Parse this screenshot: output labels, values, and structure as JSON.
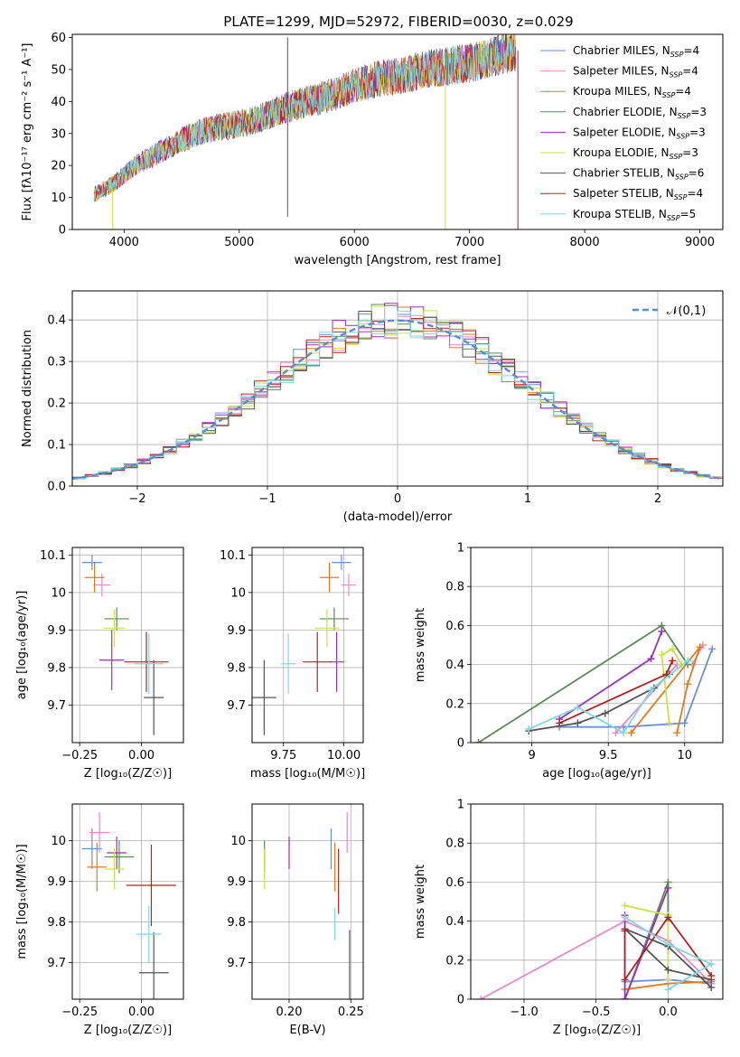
{
  "figure": {
    "title": "PLATE=1299, MJD=52972, FIBERID=0030, z=0.029",
    "series_colors": [
      "#6a8fd8",
      "#e78ac3",
      "#e07b20",
      "#5a8a5a",
      "#9b30b8",
      "#c8e04a",
      "#555555",
      "#b22222",
      "#7fd8dc"
    ]
  },
  "chart_data": [
    {
      "id": "spectrum",
      "type": "line",
      "title": "PLATE=1299, MJD=52972, FIBERID=0030, z=0.029",
      "xlabel": "wavelength [Angstrom, rest frame]",
      "ylabel": "Flux [fλ10⁻¹⁷ erg cm⁻² s⁻¹ A⁻¹]",
      "xlim": [
        3550,
        9200
      ],
      "ylim": [
        0,
        61
      ],
      "xticks": [
        4000,
        5000,
        6000,
        7000,
        8000,
        9000
      ],
      "yticks": [
        0,
        10,
        20,
        30,
        40,
        50,
        60
      ],
      "grid": false,
      "legend_position": "upper right",
      "x_range": [
        3740,
        7400
      ],
      "continuum": [
        [
          3740,
          11
        ],
        [
          3900,
          14
        ],
        [
          4000,
          17
        ],
        [
          4100,
          20
        ],
        [
          4200,
          22
        ],
        [
          4300,
          24
        ],
        [
          4500,
          28
        ],
        [
          4700,
          31
        ],
        [
          5000,
          33
        ],
        [
          5200,
          35
        ],
        [
          5400,
          38
        ],
        [
          5600,
          40
        ],
        [
          5800,
          42
        ],
        [
          6000,
          45
        ],
        [
          6200,
          47
        ],
        [
          6400,
          48
        ],
        [
          6600,
          50
        ],
        [
          6800,
          51
        ],
        [
          7000,
          52
        ],
        [
          7200,
          54
        ],
        [
          7400,
          56
        ]
      ],
      "features": [
        {
          "x": 5420,
          "y_low": 4,
          "y_high": 60,
          "series": 6
        },
        {
          "x": 6790,
          "y_low": 0,
          "y_high": 50,
          "series": 5
        },
        {
          "x": 7420,
          "y_low": 0,
          "y_high": 56,
          "series": 7
        },
        {
          "x": 3900,
          "y_low": 0,
          "y_high": 12,
          "series": 5
        }
      ],
      "series": [
        {
          "name": "Chabrier MILES, N_SSP=4",
          "color": "#6a8fd8"
        },
        {
          "name": "Salpeter MILES, N_SSP=4",
          "color": "#e78ac3"
        },
        {
          "name": "Kroupa MILES, N_SSP=4",
          "color": "#e07b20"
        },
        {
          "name": "Chabrier ELODIE, N_SSP=3",
          "color": "#5a8a5a"
        },
        {
          "name": "Salpeter ELODIE, N_SSP=3",
          "color": "#9b30b8"
        },
        {
          "name": "Kroupa ELODIE, N_SSP=3",
          "color": "#c8e04a"
        },
        {
          "name": "Chabrier STELIB, N_SSP=6",
          "color": "#555555"
        },
        {
          "name": "Salpeter STELIB, N_SSP=4",
          "color": "#b22222"
        },
        {
          "name": "Kroupa STELIB, N_SSP=5",
          "color": "#7fd8dc"
        }
      ]
    },
    {
      "id": "histogram",
      "type": "line",
      "xlabel": "(data-model)/error",
      "ylabel": "Normed distribution",
      "xlim": [
        -2.5,
        2.5
      ],
      "ylim": [
        0,
        0.47
      ],
      "xticks": [
        -2,
        -1,
        0,
        1,
        2
      ],
      "yticks": [
        0.0,
        0.1,
        0.2,
        0.3,
        0.4
      ],
      "grid": true,
      "legend_position": "upper right",
      "normal_label": "𝒩(0,1)",
      "normal_color": "#5b8bd0",
      "bin_width": 0.1,
      "bin_start": -2.5
    },
    {
      "id": "age_vs_Z",
      "type": "scatter",
      "xlabel": "Z [log₁₀(Z/Z☉)]",
      "ylabel": "age  [log₁₀(age/yr)]",
      "xlim": [
        -0.28,
        0.17
      ],
      "ylim": [
        9.6,
        10.12
      ],
      "xticks": [
        -0.25,
        0.0
      ],
      "yticks": [
        9.7,
        9.8,
        9.9,
        10.0,
        10.1
      ],
      "grid": true,
      "points": [
        {
          "x": -0.2,
          "y": 10.08,
          "xerr": 0.04,
          "yerr": 0.02
        },
        {
          "x": -0.16,
          "y": 10.02,
          "xerr": 0.035,
          "yerr": 0.03
        },
        {
          "x": -0.19,
          "y": 10.04,
          "xerr": 0.04,
          "yerr": 0.04
        },
        {
          "x": -0.1,
          "y": 9.93,
          "xerr": 0.05,
          "yerr": 0.03
        },
        {
          "x": -0.12,
          "y": 9.82,
          "xerr": 0.05,
          "yerr": 0.08
        },
        {
          "x": -0.11,
          "y": 9.905,
          "xerr": 0.045,
          "yerr": 0.05
        },
        {
          "x": 0.05,
          "y": 9.72,
          "xerr": 0.04,
          "yerr": 0.1
        },
        {
          "x": 0.02,
          "y": 9.815,
          "xerr": 0.09,
          "yerr": 0.08
        },
        {
          "x": 0.03,
          "y": 9.81,
          "xerr": 0.06,
          "yerr": 0.08
        }
      ]
    },
    {
      "id": "age_vs_mass",
      "type": "scatter",
      "xlabel": "mass [log₁₀(M/M☉)]",
      "ylabel": "",
      "xlim": [
        9.62,
        10.08
      ],
      "ylim": [
        9.6,
        10.12
      ],
      "xticks": [
        9.75,
        10.0
      ],
      "yticks": [
        9.7,
        9.8,
        9.9,
        10.0,
        10.1
      ],
      "grid": true,
      "points": [
        {
          "x": 9.99,
          "y": 10.08,
          "xerr": 0.04,
          "yerr": 0.02
        },
        {
          "x": 10.02,
          "y": 10.02,
          "xerr": 0.03,
          "yerr": 0.03
        },
        {
          "x": 9.94,
          "y": 10.04,
          "xerr": 0.04,
          "yerr": 0.04
        },
        {
          "x": 9.96,
          "y": 9.93,
          "xerr": 0.06,
          "yerr": 0.03
        },
        {
          "x": 9.97,
          "y": 9.815,
          "xerr": 0.03,
          "yerr": 0.08
        },
        {
          "x": 9.93,
          "y": 9.905,
          "xerr": 0.05,
          "yerr": 0.05
        },
        {
          "x": 9.67,
          "y": 9.72,
          "xerr": 0.05,
          "yerr": 0.1
        },
        {
          "x": 9.89,
          "y": 9.815,
          "xerr": 0.06,
          "yerr": 0.08
        },
        {
          "x": 9.77,
          "y": 9.81,
          "xerr": 0.03,
          "yerr": 0.08
        }
      ]
    },
    {
      "id": "weight_vs_age",
      "type": "line",
      "xlabel": "age  [log₁₀(age/yr)]",
      "ylabel": "mass weight",
      "xlim": [
        8.6,
        10.25
      ],
      "ylim": [
        0,
        1.0
      ],
      "xticks": [
        9.0,
        9.5,
        10.0
      ],
      "yticks": [
        0.0,
        0.2,
        0.4,
        0.6,
        0.8,
        1.0
      ],
      "grid": true,
      "series": [
        {
          "points": [
            [
              9.18,
              0.08
            ],
            [
              9.6,
              0.08
            ],
            [
              10.0,
              0.1
            ],
            [
              10.18,
              0.48
            ]
          ]
        },
        {
          "points": [
            [
              9.55,
              0.05
            ],
            [
              9.95,
              0.4
            ],
            [
              10.05,
              0.4
            ],
            [
              10.12,
              0.5
            ]
          ]
        },
        {
          "points": [
            [
              9.95,
              0.05
            ],
            [
              10.02,
              0.3
            ],
            [
              10.1,
              0.49
            ],
            [
              9.65,
              0.05
            ]
          ]
        },
        {
          "points": [
            [
              8.65,
              0.0
            ],
            [
              9.85,
              0.6
            ],
            [
              10.02,
              0.4
            ]
          ]
        },
        {
          "points": [
            [
              9.18,
              0.12
            ],
            [
              9.78,
              0.43
            ],
            [
              9.85,
              0.57
            ]
          ]
        },
        {
          "points": [
            [
              9.9,
              0.1
            ],
            [
              9.85,
              0.45
            ],
            [
              9.92,
              0.48
            ],
            [
              9.98,
              0.4
            ]
          ]
        },
        {
          "points": [
            [
              8.98,
              0.06
            ],
            [
              9.3,
              0.1
            ],
            [
              9.48,
              0.15
            ],
            [
              9.8,
              0.28
            ],
            [
              9.9,
              0.35
            ]
          ]
        },
        {
          "points": [
            [
              9.18,
              0.1
            ],
            [
              9.88,
              0.35
            ],
            [
              9.92,
              0.42
            ]
          ]
        },
        {
          "points": [
            [
              8.98,
              0.07
            ],
            [
              9.3,
              0.18
            ],
            [
              9.6,
              0.05
            ],
            [
              9.78,
              0.27
            ],
            [
              10.02,
              0.42
            ]
          ]
        }
      ]
    },
    {
      "id": "mass_vs_Z",
      "type": "scatter",
      "xlabel": "Z [log₁₀(Z/Z☉)]",
      "ylabel": "mass [log₁₀(M/M☉)]",
      "xlim": [
        -0.28,
        0.17
      ],
      "ylim": [
        9.61,
        10.09
      ],
      "xticks": [
        -0.25,
        0.0
      ],
      "yticks": [
        9.7,
        9.8,
        9.9,
        10.0
      ],
      "grid": true,
      "points": [
        {
          "x": -0.2,
          "y": 9.98,
          "xerr": 0.04,
          "yerr": 0.05
        },
        {
          "x": -0.17,
          "y": 10.02,
          "xerr": 0.04,
          "yerr": 0.05
        },
        {
          "x": -0.18,
          "y": 9.935,
          "xerr": 0.04,
          "yerr": 0.06
        },
        {
          "x": -0.09,
          "y": 9.96,
          "xerr": 0.06,
          "yerr": 0.04
        },
        {
          "x": -0.1,
          "y": 9.97,
          "xerr": 0.04,
          "yerr": 0.04
        },
        {
          "x": -0.11,
          "y": 9.93,
          "xerr": 0.04,
          "yerr": 0.05
        },
        {
          "x": 0.05,
          "y": 9.675,
          "xerr": 0.06,
          "yerr": 0.1
        },
        {
          "x": 0.04,
          "y": 9.89,
          "xerr": 0.1,
          "yerr": 0.1
        },
        {
          "x": 0.03,
          "y": 9.77,
          "xerr": 0.05,
          "yerr": 0.07
        }
      ]
    },
    {
      "id": "mass_vs_ebv",
      "type": "scatter",
      "xlabel": "E(B-V)",
      "ylabel": "",
      "xlim": [
        0.17,
        0.26
      ],
      "ylim": [
        9.61,
        10.09
      ],
      "xticks": [
        0.2,
        0.25
      ],
      "yticks": [
        9.7,
        9.8,
        9.9,
        10.0
      ],
      "grid": true,
      "points": [
        {
          "x": 0.234,
          "y": 9.98,
          "xerr": 0.0,
          "yerr": 0.05
        },
        {
          "x": 0.247,
          "y": 10.02,
          "xerr": 0.0,
          "yerr": 0.05
        },
        {
          "x": 0.237,
          "y": 9.935,
          "xerr": 0.0,
          "yerr": 0.06
        },
        {
          "x": 0.18,
          "y": 9.96,
          "xerr": 0.0,
          "yerr": 0.04
        },
        {
          "x": 0.2,
          "y": 9.97,
          "xerr": 0.0,
          "yerr": 0.04
        },
        {
          "x": 0.18,
          "y": 9.93,
          "xerr": 0.0,
          "yerr": 0.05
        },
        {
          "x": 0.249,
          "y": 9.68,
          "xerr": 0.0,
          "yerr": 0.1
        },
        {
          "x": 0.24,
          "y": 9.9,
          "xerr": 0.0,
          "yerr": 0.08
        },
        {
          "x": 0.237,
          "y": 9.795,
          "xerr": 0.0,
          "yerr": 0.04
        }
      ]
    },
    {
      "id": "weight_vs_Z",
      "type": "line",
      "xlabel": "Z [log₁₀(Z/Z☉)]",
      "ylabel": "mass weight",
      "xlim": [
        -1.37,
        0.38
      ],
      "ylim": [
        0,
        1.0
      ],
      "xticks": [
        -1.0,
        -0.5,
        0.0
      ],
      "yticks": [
        0.0,
        0.2,
        0.4,
        0.6,
        0.8,
        1.0
      ],
      "grid": true,
      "series": [
        {
          "points": [
            [
              -0.3,
              0.09
            ],
            [
              0.0,
              0.1
            ],
            [
              0.3,
              0.08
            ]
          ]
        },
        {
          "points": [
            [
              -1.3,
              0.0
            ],
            [
              -0.3,
              0.4
            ],
            [
              0.0,
              0.3
            ],
            [
              0.3,
              0.08
            ]
          ]
        },
        {
          "points": [
            [
              -0.3,
              0.05
            ],
            [
              0.0,
              0.08
            ],
            [
              0.3,
              0.09
            ]
          ]
        },
        {
          "points": [
            [
              -0.3,
              0.0
            ],
            [
              0.0,
              0.6
            ],
            [
              0.0,
              0.4
            ]
          ]
        },
        {
          "points": [
            [
              -0.3,
              0.43
            ],
            [
              -0.3,
              0.0
            ],
            [
              0.0,
              0.57
            ]
          ]
        },
        {
          "points": [
            [
              -0.3,
              0.48
            ],
            [
              0.0,
              0.43
            ],
            [
              0.0,
              0.1
            ]
          ]
        },
        {
          "points": [
            [
              0.3,
              0.06
            ],
            [
              0.0,
              0.27
            ],
            [
              -0.3,
              0.36
            ],
            [
              0.0,
              0.15
            ],
            [
              0.3,
              0.1
            ]
          ]
        },
        {
          "points": [
            [
              -0.3,
              0.35
            ],
            [
              -0.3,
              0.1
            ],
            [
              0.0,
              0.42
            ],
            [
              0.3,
              0.12
            ]
          ]
        },
        {
          "points": [
            [
              -0.3,
              0.42
            ],
            [
              0.0,
              0.28
            ],
            [
              0.3,
              0.18
            ],
            [
              0.0,
              0.05
            ]
          ]
        }
      ]
    }
  ]
}
